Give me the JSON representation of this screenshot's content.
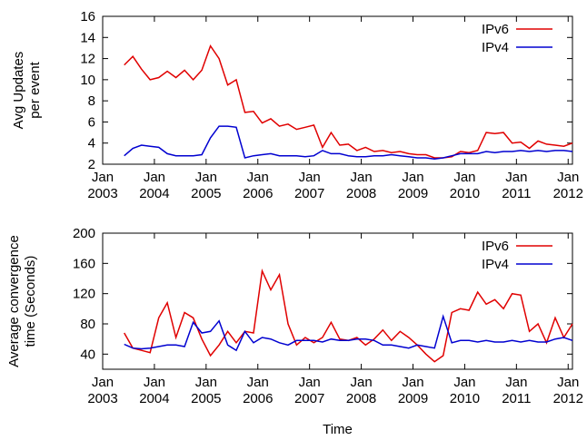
{
  "chart_data": [
    {
      "type": "line",
      "ylabel": [
        "Avg Updates",
        "per event"
      ],
      "x": [
        "2003-06",
        "2003-08",
        "2003-10",
        "2003-12",
        "2004-02",
        "2004-04",
        "2004-06",
        "2004-08",
        "2004-10",
        "2004-12",
        "2005-02",
        "2005-04",
        "2005-06",
        "2005-08",
        "2005-10",
        "2005-12",
        "2006-02",
        "2006-04",
        "2006-06",
        "2006-08",
        "2006-10",
        "2006-12",
        "2007-02",
        "2007-04",
        "2007-06",
        "2007-08",
        "2007-10",
        "2007-12",
        "2008-02",
        "2008-04",
        "2008-06",
        "2008-08",
        "2008-10",
        "2008-12",
        "2009-02",
        "2009-04",
        "2009-06",
        "2009-08",
        "2009-10",
        "2009-12",
        "2010-02",
        "2010-04",
        "2010-06",
        "2010-08",
        "2010-10",
        "2010-12",
        "2011-02",
        "2011-04",
        "2011-06",
        "2011-08",
        "2011-10",
        "2011-12",
        "2012-02"
      ],
      "series": [
        {
          "name": "IPv6",
          "color": "#e00000",
          "values": [
            11.4,
            12.2,
            11.0,
            10.0,
            10.2,
            10.8,
            10.2,
            10.9,
            10.0,
            10.9,
            13.2,
            12.0,
            9.5,
            10.0,
            6.9,
            7.0,
            5.9,
            6.3,
            5.6,
            5.8,
            5.3,
            5.5,
            5.7,
            3.6,
            5.0,
            3.8,
            3.9,
            3.3,
            3.6,
            3.2,
            3.3,
            3.1,
            3.2,
            3.0,
            2.9,
            2.9,
            2.6,
            2.6,
            2.7,
            3.2,
            3.1,
            3.3,
            5.0,
            4.9,
            5.0,
            4.0,
            4.1,
            3.5,
            4.2,
            3.9,
            3.8,
            3.7,
            4.0
          ]
        },
        {
          "name": "IPv4",
          "color": "#0000d0",
          "values": [
            2.8,
            3.5,
            3.8,
            3.7,
            3.6,
            3.0,
            2.8,
            2.8,
            2.8,
            2.9,
            4.5,
            5.6,
            5.6,
            5.5,
            2.6,
            2.8,
            2.9,
            3.0,
            2.8,
            2.8,
            2.8,
            2.7,
            2.8,
            3.3,
            3.0,
            3.0,
            2.8,
            2.7,
            2.7,
            2.8,
            2.8,
            2.9,
            2.8,
            2.7,
            2.6,
            2.6,
            2.5,
            2.6,
            2.8,
            3.0,
            3.0,
            3.0,
            3.2,
            3.1,
            3.2,
            3.2,
            3.3,
            3.2,
            3.3,
            3.2,
            3.3,
            3.3,
            3.2
          ]
        }
      ],
      "xlim": [
        "2003-01",
        "2012-02"
      ],
      "xticks": [
        {
          "value": "2003-01",
          "label": "Jan 2003"
        },
        {
          "value": "2004-01",
          "label": "Jan 2004"
        },
        {
          "value": "2005-01",
          "label": "Jan 2005"
        },
        {
          "value": "2006-01",
          "label": "Jan 2006"
        },
        {
          "value": "2007-01",
          "label": "Jan 2007"
        },
        {
          "value": "2008-01",
          "label": "Jan 2008"
        },
        {
          "value": "2009-01",
          "label": "Jan 2009"
        },
        {
          "value": "2010-01",
          "label": "Jan 2010"
        },
        {
          "value": "2011-01",
          "label": "Jan 2011"
        },
        {
          "value": "2012-01",
          "label": "Jan 2012"
        }
      ],
      "ylim": [
        2,
        16
      ],
      "yticks": [
        2,
        4,
        6,
        8,
        10,
        12,
        14,
        16
      ],
      "legend": "upper right",
      "grid": false
    },
    {
      "type": "line",
      "ylabel": [
        "Average convergence",
        "time (Seconds)"
      ],
      "xlabel": "Time",
      "x": [
        "2003-06",
        "2003-08",
        "2003-10",
        "2003-12",
        "2004-02",
        "2004-04",
        "2004-06",
        "2004-08",
        "2004-10",
        "2004-12",
        "2005-02",
        "2005-04",
        "2005-06",
        "2005-08",
        "2005-10",
        "2005-12",
        "2006-02",
        "2006-04",
        "2006-06",
        "2006-08",
        "2006-10",
        "2006-12",
        "2007-02",
        "2007-04",
        "2007-06",
        "2007-08",
        "2007-10",
        "2007-12",
        "2008-02",
        "2008-04",
        "2008-06",
        "2008-08",
        "2008-10",
        "2008-12",
        "2009-02",
        "2009-04",
        "2009-06",
        "2009-08",
        "2009-10",
        "2009-12",
        "2010-02",
        "2010-04",
        "2010-06",
        "2010-08",
        "2010-10",
        "2010-12",
        "2011-02",
        "2011-04",
        "2011-06",
        "2011-08",
        "2011-10",
        "2011-12",
        "2012-02"
      ],
      "series": [
        {
          "name": "IPv6",
          "color": "#e00000",
          "values": [
            68,
            48,
            45,
            42,
            88,
            108,
            62,
            95,
            88,
            60,
            38,
            52,
            70,
            55,
            70,
            68,
            150,
            125,
            145,
            80,
            52,
            62,
            55,
            62,
            82,
            60,
            58,
            62,
            52,
            60,
            72,
            58,
            70,
            62,
            52,
            40,
            30,
            38,
            95,
            100,
            98,
            122,
            106,
            112,
            100,
            120,
            118,
            70,
            80,
            55,
            88,
            62,
            80
          ]
        },
        {
          "name": "IPv4",
          "color": "#0000d0",
          "values": [
            53,
            48,
            47,
            48,
            50,
            52,
            52,
            50,
            82,
            68,
            70,
            84,
            52,
            45,
            70,
            55,
            62,
            60,
            55,
            52,
            58,
            58,
            58,
            56,
            60,
            58,
            58,
            60,
            60,
            58,
            52,
            52,
            50,
            48,
            52,
            50,
            48,
            90,
            55,
            58,
            58,
            56,
            58,
            56,
            56,
            58,
            56,
            58,
            56,
            56,
            60,
            62,
            58
          ]
        }
      ],
      "xlim": [
        "2003-01",
        "2012-02"
      ],
      "xticks": [
        {
          "value": "2003-01",
          "label": "Jan 2003"
        },
        {
          "value": "2004-01",
          "label": "Jan 2004"
        },
        {
          "value": "2005-01",
          "label": "Jan 2005"
        },
        {
          "value": "2006-01",
          "label": "Jan 2006"
        },
        {
          "value": "2007-01",
          "label": "Jan 2007"
        },
        {
          "value": "2008-01",
          "label": "Jan 2008"
        },
        {
          "value": "2009-01",
          "label": "Jan 2009"
        },
        {
          "value": "2010-01",
          "label": "Jan 2010"
        },
        {
          "value": "2011-01",
          "label": "Jan 2011"
        },
        {
          "value": "2012-01",
          "label": "Jan 2012"
        }
      ],
      "ylim": [
        20,
        200
      ],
      "yticks": [
        40,
        80,
        120,
        160,
        200
      ],
      "legend": "upper right",
      "grid": false
    }
  ]
}
